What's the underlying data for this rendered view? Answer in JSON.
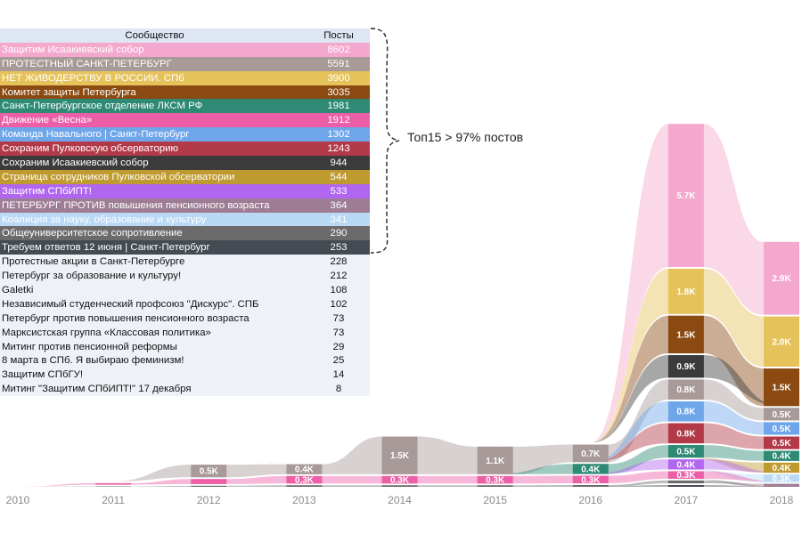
{
  "table": {
    "header": {
      "name": "Сообщество",
      "value": "Посты"
    },
    "top": [
      {
        "name": "Защитим Исаакиевский собор",
        "value": "8602",
        "color": "#f4a8cd",
        "text": "#ffffff"
      },
      {
        "name": "ПРОТЕСТНЫЙ САНКТ-ПЕТЕРБУРГ",
        "value": "5591",
        "color": "#a89a99",
        "text": "#ffffff"
      },
      {
        "name": "НЕТ ЖИВОДЕРСТВУ В РОССИИ. СПб",
        "value": "3900",
        "color": "#e6c25b",
        "text": "#ffffff"
      },
      {
        "name": "Комитет защиты Петербурга",
        "value": "3035",
        "color": "#8a4a12",
        "text": "#ffffff"
      },
      {
        "name": "Санкт-Петербургское отделение ЛКСМ РФ",
        "value": "1981",
        "color": "#2e8a74",
        "text": "#ffffff"
      },
      {
        "name": "Движение «Весна»",
        "value": "1912",
        "color": "#ec5fa8",
        "text": "#ffffff"
      },
      {
        "name": "Команда Навального | Санкт-Петербург",
        "value": "1302",
        "color": "#6fa6ea",
        "text": "#ffffff"
      },
      {
        "name": "Сохраним Пулковскую обсерваторию",
        "value": "1243",
        "color": "#b23a48",
        "text": "#ffffff"
      },
      {
        "name": "Сохраним Исаакиевский собор",
        "value": "944",
        "color": "#3b3b3b",
        "text": "#ffffff"
      },
      {
        "name": "Страница сотрудников Пулковской обсерватории",
        "value": "544",
        "color": "#bf9a2e",
        "text": "#ffffff"
      },
      {
        "name": "Защитим СПбИПТ!",
        "value": "533",
        "color": "#b166f0",
        "text": "#ffffff"
      },
      {
        "name": "ПЕТЕРБУРГ ПРОТИВ повышения пенсионного возраста",
        "value": "364",
        "color": "#9e7d94",
        "text": "#ffffff"
      },
      {
        "name": "Коалиция за науку, образование и культуру",
        "value": "341",
        "color": "#b9d9f5",
        "text": "#ffffff"
      },
      {
        "name": "Общеуниверситетское сопротивление",
        "value": "290",
        "color": "#6b6b6b",
        "text": "#ffffff"
      },
      {
        "name": "Требуем ответов 12 июня | Санкт-Петербург",
        "value": "253",
        "color": "#454b52",
        "text": "#ffffff"
      }
    ],
    "rest": [
      {
        "name": "Протестные акции в Санкт-Петербурге",
        "value": "228"
      },
      {
        "name": "Петербург за образование и культуру!",
        "value": "212"
      },
      {
        "name": "Galetki",
        "value": "108"
      },
      {
        "name": "Независимый студенческий профсоюз \"Дискурс\". СПБ",
        "value": "102"
      },
      {
        "name": "Петербург против повышения пенсионного возраста",
        "value": "73"
      },
      {
        "name": "Марксистская группа «Классовая политика»",
        "value": "73"
      },
      {
        "name": "Митинг против пенсионной реформы",
        "value": "29"
      },
      {
        "name": "8 марта в СПб. Я выбираю феминизм!",
        "value": "25"
      },
      {
        "name": "Защитим СПбГУ!",
        "value": "14"
      },
      {
        "name": "Митинг \"Защитим СПбИПТ!\" 17 декабря",
        "value": "8"
      }
    ],
    "brace_label": "Топ15 > 97% постов"
  },
  "chart_data": {
    "type": "area",
    "title": "",
    "xlabel": "",
    "ylabel": "",
    "categories": [
      "2010",
      "2011",
      "2012",
      "2013",
      "2014",
      "2015",
      "2016",
      "2017",
      "2018"
    ],
    "series": [
      {
        "name": "Защитим Исаакиевский собор",
        "color": "#f4a8cd",
        "values": [
          0,
          0,
          0,
          0,
          0,
          0,
          0,
          5700,
          2900
        ],
        "labels": [
          "",
          "",
          "",
          "",
          "",
          "",
          "",
          "5.7K",
          "2.9K"
        ]
      },
      {
        "name": "НЕТ ЖИВОДЕРСТВУ В РОССИИ. СПб",
        "color": "#e6c25b",
        "values": [
          0,
          0,
          0,
          0,
          0,
          0,
          0,
          1800,
          2000
        ],
        "labels": [
          "",
          "",
          "",
          "",
          "",
          "",
          "",
          "1.8K",
          "2.0K"
        ]
      },
      {
        "name": "Комитет защиты Петербурга",
        "color": "#8a4a12",
        "values": [
          0,
          0,
          0,
          0,
          0,
          0,
          0,
          1500,
          1500
        ],
        "labels": [
          "",
          "",
          "",
          "",
          "",
          "",
          "",
          "1.5K",
          "1.5K"
        ]
      },
      {
        "name": "Сохраним Исаакиевский собор",
        "color": "#3b3b3b",
        "values": [
          0,
          0,
          0,
          0,
          0,
          0,
          0,
          900,
          0
        ],
        "labels": [
          "",
          "",
          "",
          "",
          "",
          "",
          "",
          "0.9K",
          ""
        ]
      },
      {
        "name": "ПРОТЕСТНЫЙ САНКТ-ПЕТЕРБУРГ",
        "color": "#a89a99",
        "values": [
          0,
          0,
          500,
          400,
          1500,
          1100,
          700,
          800,
          500
        ],
        "labels": [
          "",
          "",
          "0.5K",
          "0.4K",
          "1.5K",
          "1.1K",
          "0.7K",
          "0.8K",
          "0.5K"
        ]
      },
      {
        "name": "Команда Навального | Санкт-Петербург",
        "color": "#6fa6ea",
        "values": [
          0,
          0,
          0,
          0,
          0,
          0,
          0,
          800,
          500
        ],
        "labels": [
          "",
          "",
          "",
          "",
          "",
          "",
          "",
          "0.8K",
          "0.5K"
        ]
      },
      {
        "name": "Сохраним Пулковскую обсерваторию",
        "color": "#b23a48",
        "values": [
          0,
          0,
          0,
          0,
          0,
          0,
          0,
          800,
          500
        ],
        "labels": [
          "",
          "",
          "",
          "",
          "",
          "",
          "",
          "0.8K",
          "0.5K"
        ]
      },
      {
        "name": "Санкт-Петербургское отделение ЛКСМ РФ",
        "color": "#2e8a74",
        "values": [
          0,
          0,
          0,
          0,
          0,
          0,
          400,
          500,
          400
        ],
        "labels": [
          "",
          "",
          "",
          "",
          "",
          "",
          "0.4K",
          "0.5K",
          "0.4K"
        ]
      },
      {
        "name": "Страница сотрудников Пулковской обсерватории",
        "color": "#bf9a2e",
        "values": [
          0,
          0,
          0,
          0,
          0,
          0,
          0,
          0,
          400
        ],
        "labels": [
          "",
          "",
          "",
          "",
          "",
          "",
          "",
          "",
          "0.4K"
        ]
      },
      {
        "name": "Защитим СПбИПТ!",
        "color": "#b166f0",
        "values": [
          0,
          0,
          0,
          0,
          0,
          0,
          0,
          400,
          0
        ],
        "labels": [
          "",
          "",
          "",
          "",
          "",
          "",
          "",
          "0.4K",
          ""
        ]
      },
      {
        "name": "Коалиция за науку, образование и культуру",
        "color": "#b9d9f5",
        "values": [
          0,
          0,
          0,
          0,
          0,
          0,
          0,
          0,
          300
        ],
        "labels": [
          "",
          "",
          "",
          "",
          "",
          "",
          "",
          "",
          "0.3K"
        ]
      },
      {
        "name": "Движение «Весна»",
        "color": "#ec5fa8",
        "values": [
          0,
          60,
          200,
          300,
          300,
          300,
          300,
          300,
          0
        ],
        "labels": [
          "",
          "",
          "",
          "0.3K",
          "0.3K",
          "0.3K",
          "0.3K",
          "0.3K",
          ""
        ]
      },
      {
        "name": "ПЕТЕРБУРГ ПРОТИВ повышения пенсионного возраста",
        "color": "#9e7d94",
        "values": [
          0,
          0,
          0,
          0,
          0,
          0,
          0,
          0,
          120
        ],
        "labels": [
          "",
          "",
          "",
          "",
          "",
          "",
          "",
          "",
          ""
        ]
      },
      {
        "name": "Общеуниверситетское сопротивление",
        "color": "#6b6b6b",
        "values": [
          0,
          15,
          40,
          60,
          60,
          60,
          70,
          110,
          0
        ],
        "labels": [
          "",
          "",
          "",
          "",
          "",
          "",
          "",
          "",
          ""
        ]
      },
      {
        "name": "Требуем ответов 12 июня | Санкт-Петербург",
        "color": "#454b52",
        "values": [
          0,
          0,
          0,
          0,
          0,
          0,
          0,
          70,
          0
        ],
        "labels": [
          "",
          "",
          "",
          "",
          "",
          "",
          "",
          "",
          ""
        ]
      }
    ]
  }
}
